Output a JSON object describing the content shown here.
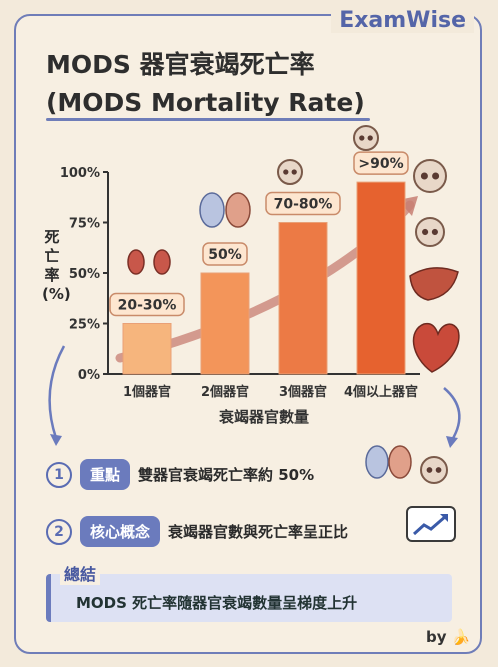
{
  "brand": "ExamWise",
  "title_line1": "MODS 器官衰竭死亡率",
  "title_line2": "(MODS Mortality Rate)",
  "chart_data": {
    "type": "bar",
    "categories": [
      "1個器官",
      "2個器官",
      "3個器官",
      "4個以上器官"
    ],
    "values": [
      25,
      50,
      75,
      95
    ],
    "data_labels": [
      "20-30%",
      "50%",
      "70-80%",
      ">90%"
    ],
    "ylabel": "死亡率(%)",
    "xlabel": "衰竭器官數量",
    "ylim": [
      0,
      100
    ],
    "yticks": [
      "0%",
      "25%",
      "50%",
      "75%",
      "100%"
    ],
    "bar_colors": [
      "#f6b57d",
      "#f3955a",
      "#ec7a45",
      "#e6622f"
    ]
  },
  "points": [
    {
      "num": "1",
      "badge": "重點",
      "text": "雙器官衰竭死亡率約 50%"
    },
    {
      "num": "2",
      "badge": "核心概念",
      "text": "衰竭器官數與死亡率呈正比"
    }
  ],
  "summary": {
    "label": "總結",
    "text": "MODS 死亡率隨器官衰竭數量呈梯度上升"
  },
  "byline": "by 🍌",
  "colors": {
    "accent": "#6b7bbd",
    "bar_outline": "#e9a077",
    "label_bg": "#fde6d0"
  }
}
